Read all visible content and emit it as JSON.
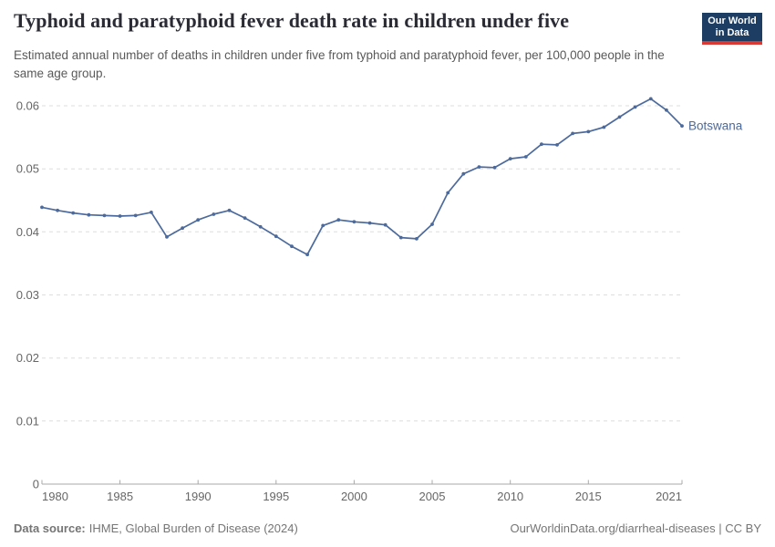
{
  "header": {
    "title": "Typhoid and paratyphoid fever death rate in children under five",
    "subtitle": "Estimated annual number of deaths in children under five from typhoid and paratyphoid fever, per 100,000 people in the same age group.",
    "logo": {
      "line1": "Our World",
      "line2": "in Data"
    }
  },
  "chart_data": {
    "type": "line",
    "title": "Typhoid and paratyphoid fever death rate in children under five",
    "entity_label": "Botswana",
    "x": [
      1980,
      1981,
      1982,
      1983,
      1984,
      1985,
      1986,
      1987,
      1988,
      1989,
      1990,
      1991,
      1992,
      1993,
      1994,
      1995,
      1996,
      1997,
      1998,
      1999,
      2000,
      2001,
      2002,
      2003,
      2004,
      2005,
      2006,
      2007,
      2008,
      2009,
      2010,
      2011,
      2012,
      2013,
      2014,
      2015,
      2016,
      2017,
      2018,
      2019,
      2020,
      2021
    ],
    "series": [
      {
        "name": "Botswana",
        "values": [
          0.0439,
          0.0434,
          0.043,
          0.0427,
          0.0426,
          0.0425,
          0.0426,
          0.0431,
          0.0392,
          0.0406,
          0.0419,
          0.0428,
          0.0434,
          0.0422,
          0.0408,
          0.0393,
          0.0377,
          0.0364,
          0.041,
          0.0419,
          0.0416,
          0.0414,
          0.0411,
          0.0391,
          0.0389,
          0.0412,
          0.0462,
          0.0492,
          0.0503,
          0.0502,
          0.0516,
          0.0519,
          0.0539,
          0.0538,
          0.0556,
          0.0559,
          0.0566,
          0.0582,
          0.0598,
          0.0611,
          0.0593,
          0.0568
        ]
      }
    ],
    "xlim": [
      1980,
      2021
    ],
    "ylim": [
      0,
      0.06
    ],
    "x_ticks": [
      1980,
      1985,
      1990,
      1995,
      2000,
      2005,
      2010,
      2015,
      2021
    ],
    "y_ticks": [
      0,
      0.01,
      0.02,
      0.03,
      0.04,
      0.05,
      0.06
    ],
    "y_tick_labels": [
      "0",
      "0.01",
      "0.02",
      "0.03",
      "0.04",
      "0.05",
      "0.06"
    ],
    "grid": "horizontal-dashed",
    "legend_position": "end-of-line-label",
    "xlabel": "",
    "ylabel": ""
  },
  "colors": {
    "line": "#4c6a9c",
    "grid": "#dedede",
    "axis": "#a8a8a8",
    "tick_text": "#666666",
    "title_text": "#2b2b35",
    "subtitle_text": "#595959",
    "footer_text": "#757575",
    "owid_navy": "#1d3d63",
    "owid_red": "#d93a33"
  },
  "footer": {
    "source_label": "Data source:",
    "source_value": "IHME, Global Burden of Disease (2024)",
    "url": "OurWorldinData.org/diarrheal-diseases",
    "license": " | CC BY"
  }
}
